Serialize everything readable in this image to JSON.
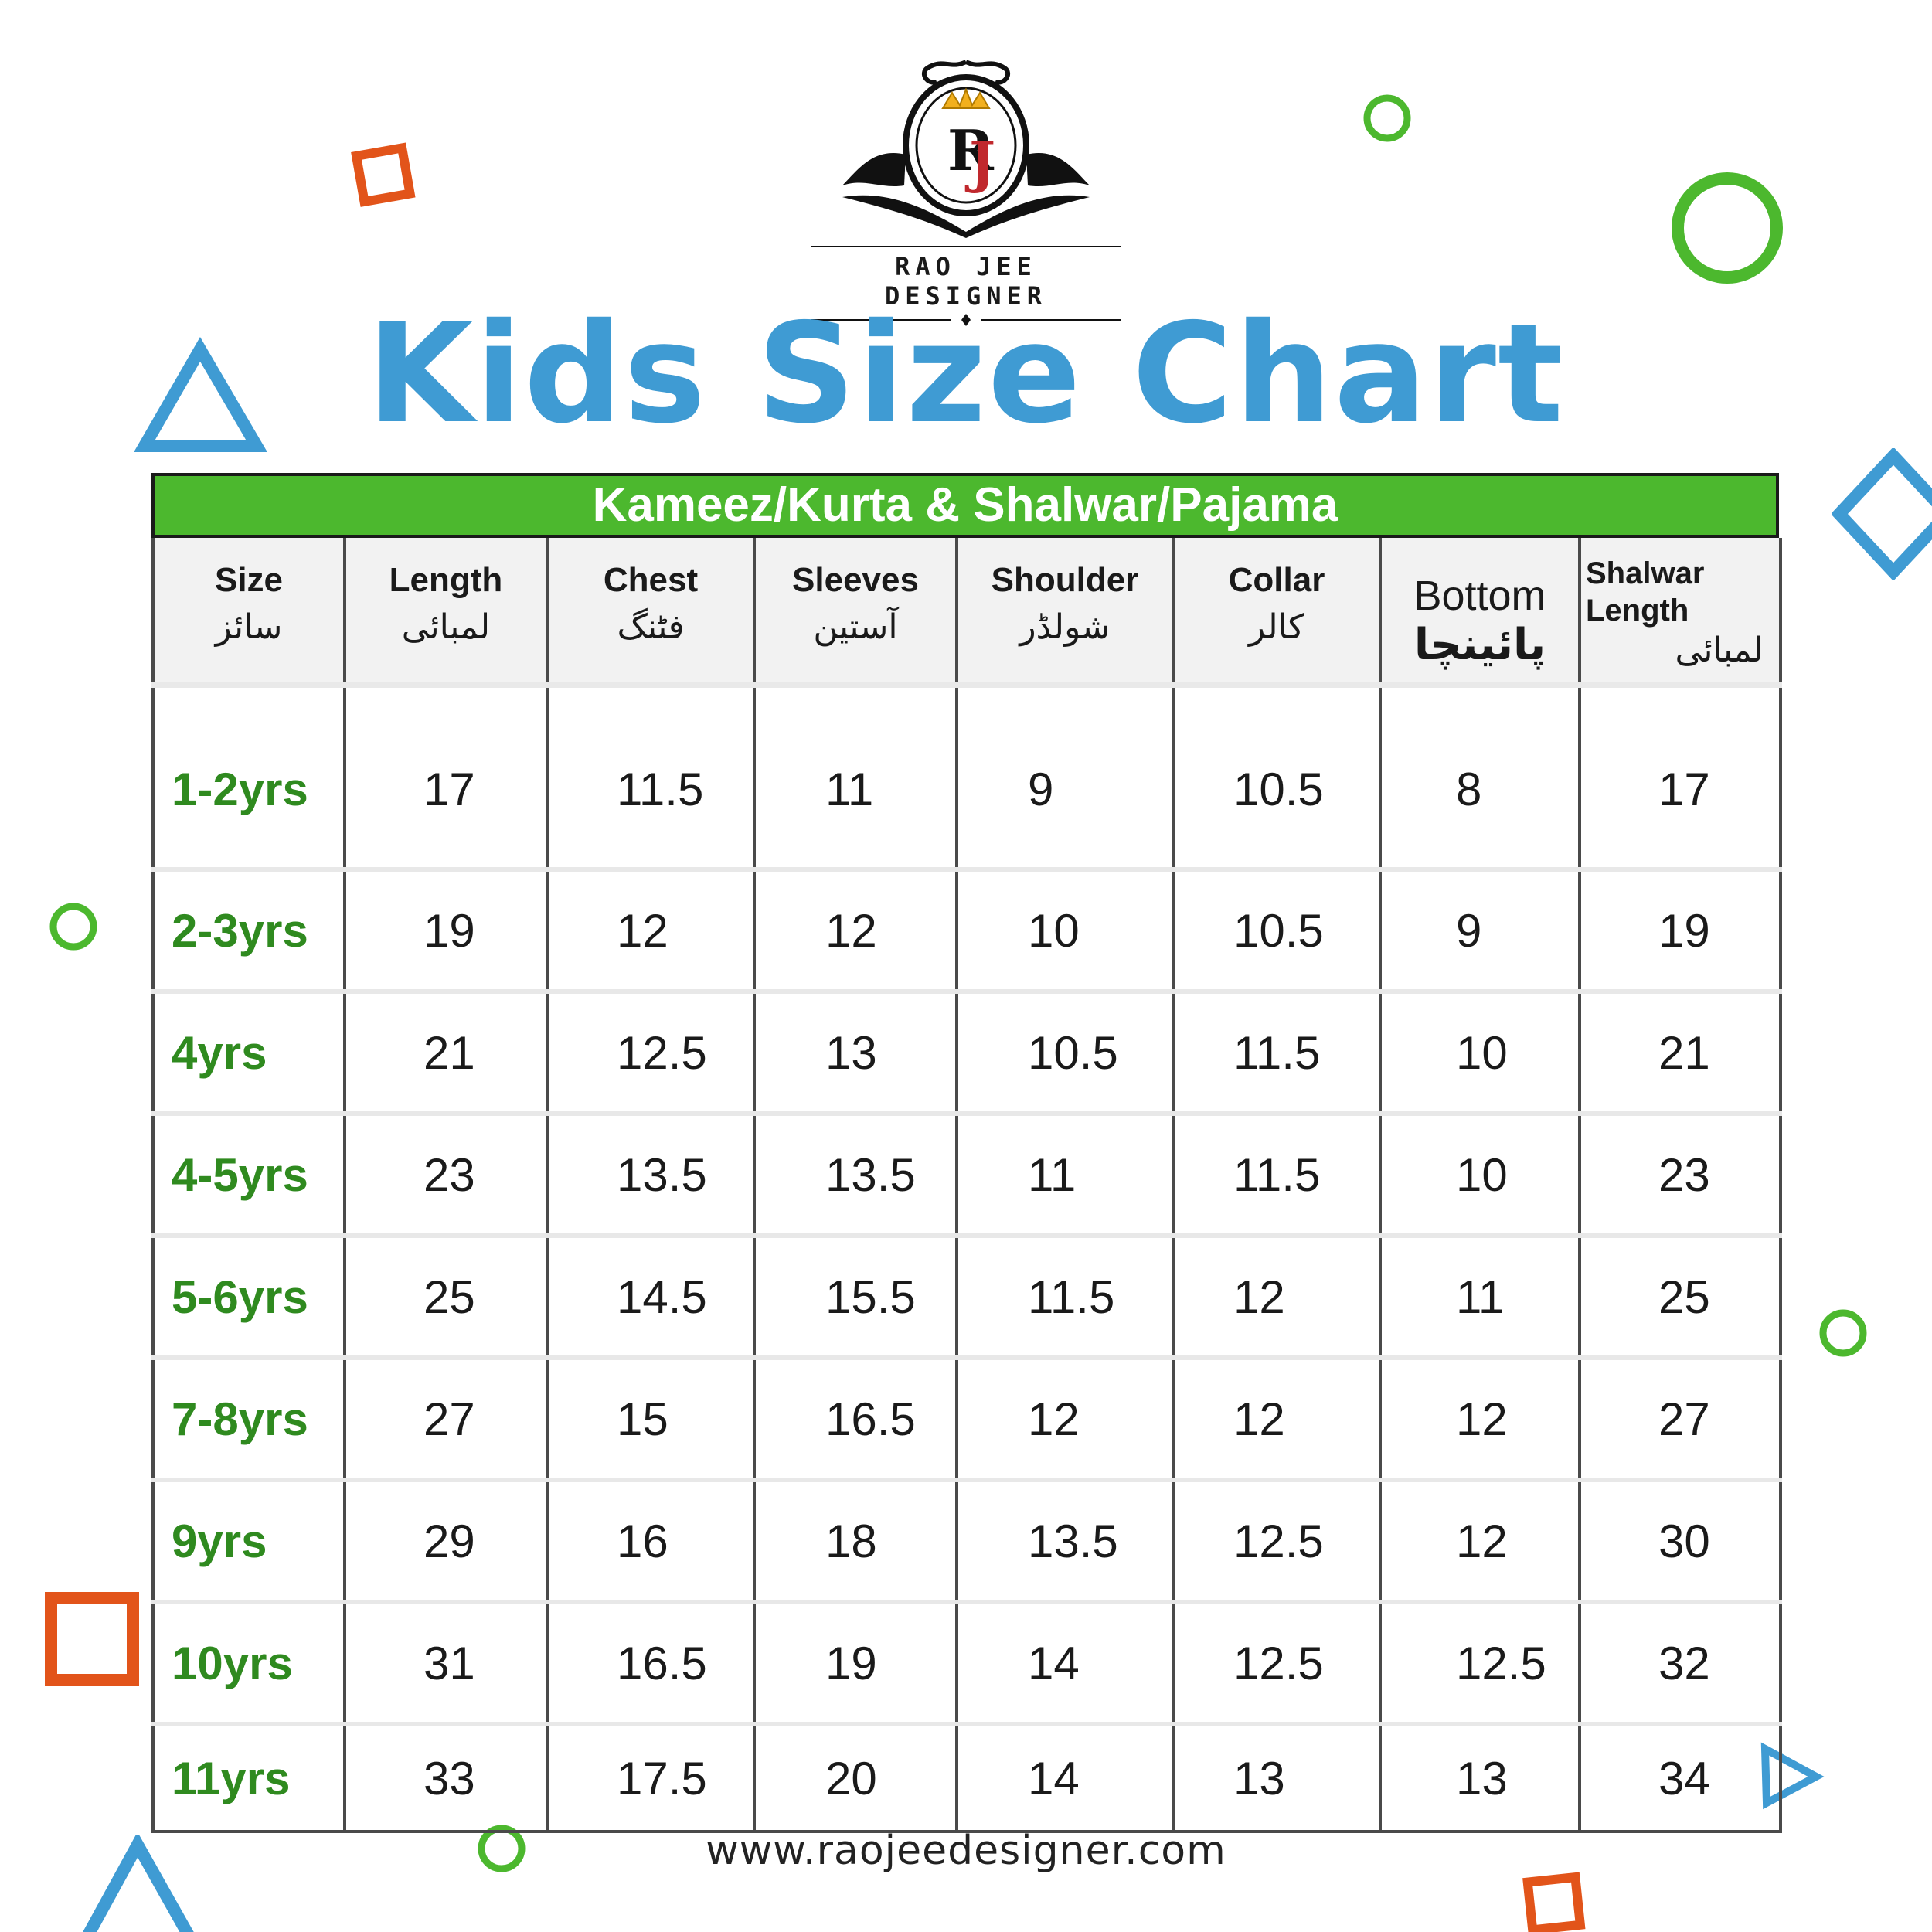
{
  "brand": {
    "name": "RAO JEE DESIGNER",
    "monogram": "RJ"
  },
  "title": "Kids Size Chart",
  "table": {
    "banner": "Kameez/Kurta & Shalwar/Pajama",
    "headers": [
      {
        "en": "Size",
        "ur": "سائز"
      },
      {
        "en": "Length",
        "ur": "لمبائی"
      },
      {
        "en": "Chest",
        "ur": "فٹنگ"
      },
      {
        "en": "Sleeves",
        "ur": "آستین"
      },
      {
        "en": "Shoulder",
        "ur": "شولڈر"
      },
      {
        "en": "Collar",
        "ur": "کالر"
      },
      {
        "en": "Bottom",
        "ur": "پائینچا"
      },
      {
        "en": "Shalwar Length",
        "ur": "لمبائی"
      }
    ],
    "rows": [
      [
        "1-2yrs",
        "17",
        "11.5",
        "11",
        "9",
        "10.5",
        "8",
        "17"
      ],
      [
        "2-3yrs",
        "19",
        "12",
        "12",
        "10",
        "10.5",
        "9",
        "19"
      ],
      [
        "4yrs",
        "21",
        "12.5",
        "13",
        "10.5",
        "11.5",
        "10",
        "21"
      ],
      [
        "4-5yrs",
        "23",
        "13.5",
        "13.5",
        "11",
        "11.5",
        "10",
        "23"
      ],
      [
        "5-6yrs",
        "25",
        "14.5",
        "15.5",
        "11.5",
        "12",
        "11",
        "25"
      ],
      [
        "7-8yrs",
        "27",
        "15",
        "16.5",
        "12",
        "12",
        "12",
        "27"
      ],
      [
        "9yrs",
        "29",
        "16",
        "18",
        "13.5",
        "12.5",
        "12",
        "30"
      ],
      [
        "10yrs",
        "31",
        "16.5",
        "19",
        "14",
        "12.5",
        "12.5",
        "32"
      ],
      [
        "11yrs",
        "33",
        "17.5",
        "20",
        "14",
        "13",
        "13",
        "34"
      ]
    ]
  },
  "website": "www.raojeedesigner.com",
  "colors": {
    "title": "#3f9bd3",
    "banner": "#4cb82e",
    "size_text": "#2f8a1f",
    "orange": "#e2541a",
    "green": "#4cb82e",
    "blue": "#3f9bd3"
  }
}
